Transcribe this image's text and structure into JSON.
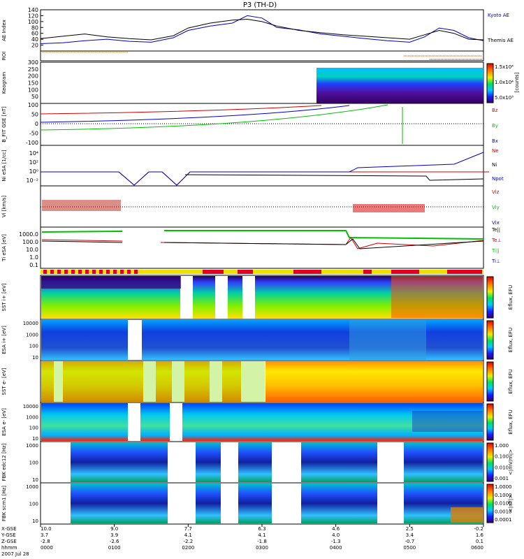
{
  "title": "P3 (TH-D)",
  "chart_data": [
    {
      "type": "line",
      "name": "AE Index",
      "ylabel": "AE Index",
      "ylim": [
        0,
        140
      ],
      "yticks": [
        "20",
        "40",
        "60",
        "80",
        "100",
        "120",
        "140"
      ],
      "x_hours": [
        0,
        0.3,
        0.6,
        0.9,
        1.2,
        1.5,
        1.8,
        2.0,
        2.3,
        2.6,
        2.8,
        3.0,
        3.2,
        3.5,
        3.8,
        4.1,
        4.4,
        4.7,
        5.0,
        5.2,
        5.4,
        5.6,
        5.8,
        6.0
      ],
      "series": [
        {
          "name": "Kyoto AE",
          "color": "#0000c0",
          "values": [
            25,
            28,
            35,
            40,
            33,
            30,
            45,
            70,
            85,
            95,
            120,
            112,
            80,
            72,
            58,
            50,
            42,
            35,
            30,
            48,
            78,
            70,
            45,
            35
          ]
        },
        {
          "name": "Themis AE",
          "color": "#000000",
          "values": [
            42,
            50,
            58,
            48,
            42,
            38,
            52,
            78,
            95,
            105,
            108,
            100,
            85,
            70,
            62,
            55,
            50,
            45,
            40,
            55,
            70,
            60,
            40,
            38
          ]
        }
      ],
      "legend": [
        "Kyoto AE",
        "Themis AE"
      ]
    },
    {
      "type": "bar",
      "name": "ROI",
      "ylabel": "ROI"
    },
    {
      "type": "heatmap",
      "name": "Keogram",
      "ylabel": "Keogram",
      "ylim": [
        0,
        300
      ],
      "yticks": [
        "50",
        "100",
        "150",
        "200",
        "250",
        "300"
      ],
      "colorbar_ticks": [
        "5.0x10³",
        "1.0x10⁴",
        "1.5x10⁴"
      ],
      "colorbar_label": "[counts]"
    },
    {
      "type": "line",
      "name": "B FIT GSE",
      "ylabel": "B_FIT GSE [nT]",
      "ylim": [
        -100,
        100
      ],
      "yticks": [
        "100",
        "50",
        "0",
        "-50",
        "-100"
      ],
      "legend": [
        "Bz",
        "By",
        "Bx"
      ]
    },
    {
      "type": "line",
      "name": "Ni",
      "ylabel": "Ni eSA [1/cc]",
      "yticks": [
        "10⁴",
        "10²",
        "10⁰",
        "10⁻²"
      ],
      "legend": [
        "Ne",
        "Ni",
        "Npot"
      ]
    },
    {
      "type": "scatter",
      "name": "Vi",
      "ylabel": "Vi [km/s]",
      "legend": [
        "Viz",
        "Viy",
        "Vix"
      ]
    },
    {
      "type": "line",
      "name": "Ti",
      "ylabel": "Ti eSA [eV]",
      "yticks": [
        "1000.0",
        "100.0",
        "10.0",
        "1.0",
        "0.1"
      ],
      "legend": [
        "Te||",
        "Te⊥",
        "Ti||",
        "Ti⊥"
      ]
    },
    {
      "type": "heatmap",
      "name": "SST ion",
      "ylabel": "SST i+ [eV]",
      "colorbar_label": "Eflux, EFU"
    },
    {
      "type": "heatmap",
      "name": "ESA ion",
      "ylabel": "ESA i+ [eV]",
      "yticks": [
        "10000",
        "1000",
        "100",
        "10"
      ],
      "colorbar_label": "Eflux, EFU"
    },
    {
      "type": "heatmap",
      "name": "SST electron",
      "ylabel": "SST e- [eV]",
      "colorbar_label": "Eflux, EFU"
    },
    {
      "type": "heatmap",
      "name": "ESA electron",
      "ylabel": "ESA e- [eV]",
      "yticks": [
        "10000",
        "1000",
        "100",
        "10"
      ],
      "colorbar_label": "Eflux, EFU"
    },
    {
      "type": "heatmap",
      "name": "FBK edc12",
      "ylabel": "FBK edc12 [Hz]",
      "yticks": [
        "1000",
        "100",
        "10"
      ],
      "colorbar_ticks": [
        "1.000",
        "0.100",
        "0.010",
        "0.001"
      ],
      "colorbar_label": "<|mV/m|>"
    },
    {
      "type": "heatmap",
      "name": "FBK scm1",
      "ylabel": "FBK scm1 [Hz]",
      "yticks": [
        "1000",
        "100",
        "10"
      ],
      "colorbar_ticks": [
        "1.0000",
        "0.1000",
        "0.0100",
        "0.0010",
        "0.0001"
      ],
      "colorbar_label": "<|nT|>"
    }
  ],
  "ephemeris": {
    "row_labels": [
      "X-GSE",
      "Y-GSE",
      "Z-GSE",
      "hhmm",
      "2007 Jul 28"
    ],
    "columns": [
      [
        "10.0",
        "3.7",
        "-2.8",
        "0000"
      ],
      [
        "9.0",
        "3.9",
        "-2.6",
        "0100"
      ],
      [
        "7.7",
        "4.1",
        "-2.2",
        "0200"
      ],
      [
        "6.3",
        "4.1",
        "-1.8",
        "0300"
      ],
      [
        "4.6",
        "4.0",
        "-1.3",
        "0400"
      ],
      [
        "2.5",
        "3.4",
        "-0.7",
        "0500"
      ],
      [
        "-0.2",
        "1.6",
        "0.1",
        "0600"
      ]
    ]
  },
  "colors": {
    "ae_kyoto": "#0000c0",
    "ae_themis": "#000000",
    "bz": "#d00000",
    "by": "#00c000",
    "bx": "#0000d0"
  }
}
